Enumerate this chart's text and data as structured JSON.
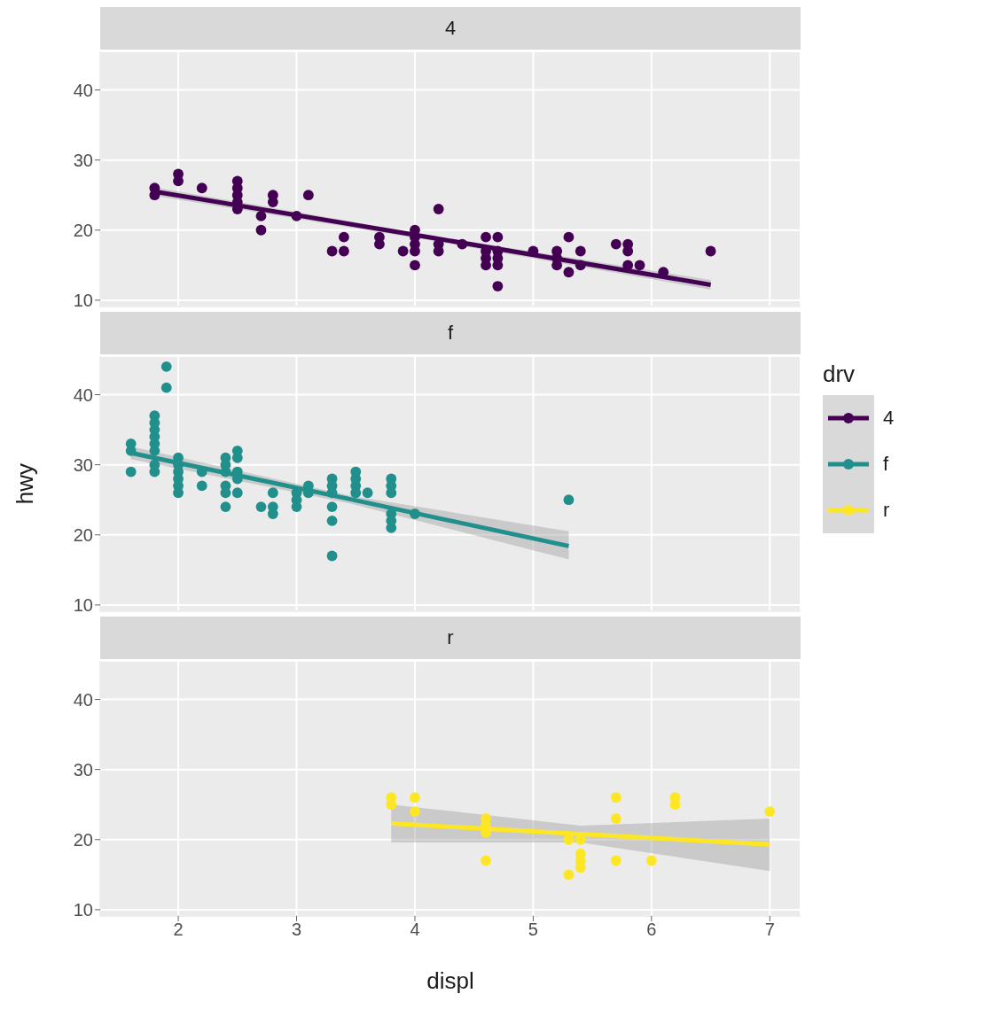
{
  "chart_data": [
    {
      "type": "scatter",
      "title": "4",
      "ylabel": null,
      "xlim": [
        1.34,
        7.26
      ],
      "ylim": [
        9.1,
        45.5
      ],
      "xticks": [
        2,
        3,
        4,
        5,
        6,
        7
      ],
      "yticks": [
        10,
        20,
        30,
        40
      ],
      "grid": true,
      "tick_labels": "y",
      "marker": "circle",
      "series": [
        {
          "name": "4",
          "color": "#440154",
          "x": [
            1.8,
            1.8,
            2.0,
            2.0,
            2.2,
            2.5,
            2.5,
            2.5,
            2.5,
            2.5,
            2.7,
            2.7,
            2.8,
            2.8,
            3.0,
            3.1,
            3.3,
            3.4,
            3.4,
            3.7,
            3.7,
            3.9,
            4.0,
            4.0,
            4.0,
            4.0,
            4.0,
            4.2,
            4.2,
            4.2,
            4.4,
            4.6,
            4.6,
            4.6,
            4.6,
            4.7,
            4.7,
            4.7,
            4.7,
            4.7,
            5.0,
            5.2,
            5.2,
            5.2,
            5.3,
            5.3,
            5.4,
            5.4,
            5.7,
            5.8,
            5.8,
            5.8,
            5.9,
            6.1,
            6.5
          ],
          "values": [
            26,
            25,
            28,
            27,
            26,
            27,
            26,
            25,
            24,
            23,
            22,
            20,
            25,
            24,
            22,
            25,
            17,
            19,
            17,
            19,
            18,
            17,
            20,
            19,
            18,
            17,
            15,
            23,
            18,
            17,
            18,
            19,
            17,
            16,
            15,
            19,
            17,
            16,
            15,
            12,
            17,
            17,
            16,
            15,
            19,
            14,
            17,
            15,
            18,
            18,
            17,
            15,
            15,
            14,
            17
          ]
        },
        {
          "type": "line",
          "marker": "none",
          "color": "#440154",
          "x": [
            1.8,
            4.15,
            6.5
          ],
          "values": [
            25.5,
            18.9,
            12.2
          ],
          "lower": [
            24.9,
            18.5,
            11.5
          ],
          "upper": [
            26.1,
            19.2,
            12.9
          ]
        }
      ]
    },
    {
      "type": "scatter",
      "title": "f",
      "ylabel": "hwy",
      "legend": "right",
      "legend_title": "drv",
      "xlim": [
        1.34,
        7.26
      ],
      "ylim": [
        9.1,
        45.5
      ],
      "xticks": [
        2,
        3,
        4,
        5,
        6,
        7
      ],
      "yticks": [
        10,
        20,
        30,
        40
      ],
      "grid": true,
      "tick_labels": "y",
      "marker": "circle",
      "series": [
        {
          "name": "f",
          "color": "#21908c",
          "x": [
            1.6,
            1.6,
            1.6,
            1.8,
            1.8,
            1.8,
            1.8,
            1.8,
            1.8,
            1.8,
            1.8,
            1.9,
            1.9,
            2.0,
            2.0,
            2.0,
            2.0,
            2.0,
            2.0,
            2.2,
            2.2,
            2.4,
            2.4,
            2.4,
            2.4,
            2.4,
            2.4,
            2.5,
            2.5,
            2.5,
            2.5,
            2.5,
            2.7,
            2.8,
            2.8,
            2.8,
            3.0,
            3.0,
            3.0,
            3.1,
            3.1,
            3.3,
            3.3,
            3.3,
            3.3,
            3.3,
            3.3,
            3.5,
            3.5,
            3.5,
            3.5,
            3.6,
            3.8,
            3.8,
            3.8,
            3.8,
            3.8,
            3.8,
            4.0,
            5.3
          ],
          "values": [
            33,
            32,
            29,
            37,
            36,
            35,
            34,
            33,
            32,
            30,
            29,
            44,
            41,
            31,
            30,
            29,
            28,
            27,
            26,
            29,
            27,
            31,
            30,
            29,
            27,
            26,
            24,
            32,
            31,
            29,
            28,
            26,
            24,
            26,
            24,
            23,
            26,
            25,
            24,
            27,
            26,
            28,
            27,
            26,
            24,
            22,
            17,
            29,
            28,
            27,
            26,
            26,
            28,
            27,
            26,
            23,
            22,
            21,
            23,
            25
          ]
        },
        {
          "type": "line",
          "marker": "none",
          "color": "#21908c",
          "x": [
            1.6,
            3.45,
            5.3
          ],
          "values": [
            31.7,
            25.1,
            18.4
          ],
          "lower": [
            30.8,
            24.5,
            16.5
          ],
          "upper": [
            32.6,
            25.6,
            20.5
          ]
        }
      ]
    },
    {
      "type": "scatter",
      "title": "r",
      "xlabel": "displ",
      "xlim": [
        1.34,
        7.26
      ],
      "ylim": [
        9.1,
        45.5
      ],
      "xticks": [
        2,
        3,
        4,
        5,
        6,
        7
      ],
      "yticks": [
        10,
        20,
        30,
        40
      ],
      "grid": true,
      "marker": "circle",
      "series": [
        {
          "name": "r",
          "color": "#fde725",
          "x": [
            3.8,
            3.8,
            4.0,
            4.0,
            4.6,
            4.6,
            4.6,
            4.6,
            5.3,
            5.3,
            5.4,
            5.4,
            5.4,
            5.4,
            5.7,
            5.7,
            5.7,
            6.0,
            6.2,
            6.2,
            7.0
          ],
          "values": [
            26,
            25,
            26,
            24,
            23,
            22,
            21,
            17,
            20,
            15,
            20,
            18,
            17,
            16,
            26,
            23,
            17,
            17,
            26,
            25,
            24
          ]
        },
        {
          "type": "line",
          "marker": "none",
          "color": "#fde725",
          "x": [
            3.8,
            5.4,
            7.0
          ],
          "values": [
            22.3,
            20.8,
            19.3
          ],
          "lower": [
            19.6,
            19.6,
            15.5
          ],
          "upper": [
            25.0,
            22.0,
            23.0
          ]
        }
      ]
    }
  ]
}
